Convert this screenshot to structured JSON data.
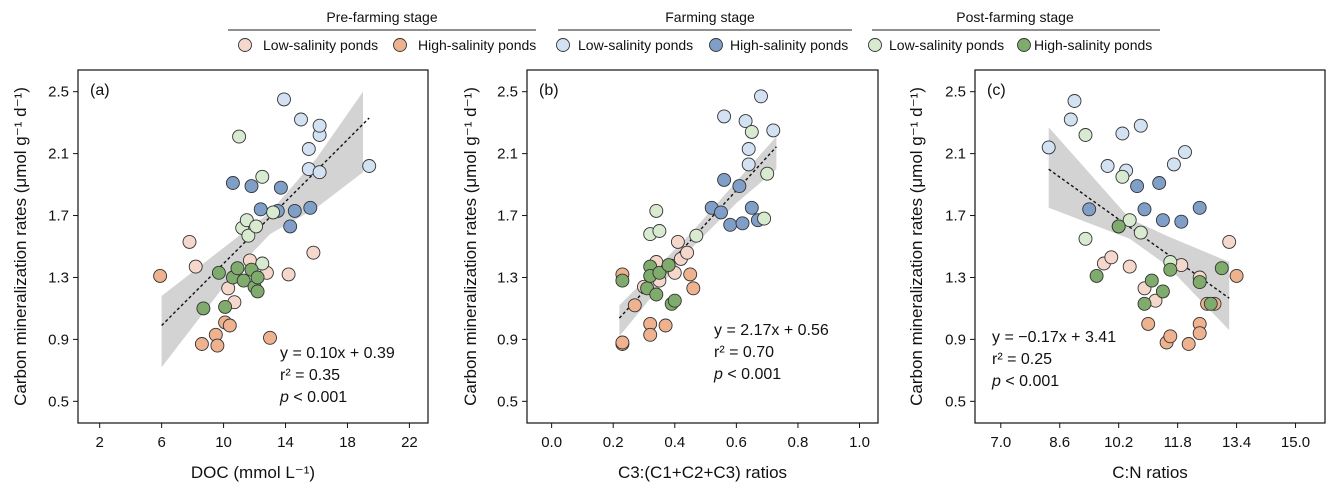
{
  "figure": {
    "ylabel": "Carbon mineralization rates (μmol g⁻¹ d⁻¹)",
    "stages": [
      {
        "title": "Pre-farming stage",
        "legend": [
          {
            "label": "Low-salinity ponds",
            "color": "#f6d7cc"
          },
          {
            "label": "High-salinity ponds",
            "color": "#eeb28e"
          }
        ]
      },
      {
        "title": "Farming stage",
        "legend": [
          {
            "label": "Low-salinity ponds",
            "color": "#d3e2f2"
          },
          {
            "label": "High-salinity ponds",
            "color": "#7f9fc9"
          }
        ]
      },
      {
        "title": "Post-farming stage",
        "legend": [
          {
            "label": "Low-salinity ponds",
            "color": "#d8ead0"
          },
          {
            "label": "High-salinity ponds",
            "color": "#7fac6d"
          }
        ]
      }
    ]
  },
  "chart_data": [
    {
      "type": "scatter",
      "panel_label": "(a)",
      "xlabel": "DOC (mmol L⁻¹)",
      "ylabel": "Carbon mineralization rates (μmol g⁻¹ d⁻¹)",
      "xlim": [
        0.6,
        23.2
      ],
      "ylim": [
        0.36,
        2.64
      ],
      "xticks": [
        "2",
        "6",
        "10",
        "14",
        "18",
        "22"
      ],
      "xtick_values": [
        2,
        6,
        10,
        14,
        18,
        22
      ],
      "yticks": [
        "0.5",
        "0.9",
        "1.3",
        "1.7",
        "2.1",
        "2.5"
      ],
      "ytick_values": [
        0.5,
        0.9,
        1.3,
        1.7,
        2.1,
        2.5
      ],
      "equation": {
        "slope": 0.1,
        "intercept": 0.39,
        "x_range": [
          6,
          19.4
        ]
      },
      "ci_band": [
        [
          6.0,
          0.72,
          1.18
        ],
        [
          11.0,
          1.37,
          1.57
        ],
        [
          13.0,
          1.58,
          1.72
        ],
        [
          16.0,
          1.75,
          2.07
        ],
        [
          19.0,
          1.98,
          2.5
        ]
      ],
      "annotation": {
        "eq": "y  = 0.10x + 0.39",
        "r2": "r² = 0.35",
        "p_prefix": "p",
        "p_suffix": " < 0.001"
      },
      "grid": false,
      "series": [
        {
          "name": "Pre-farming stage · Low-salinity ponds",
          "color": "#f6d7cc",
          "points": [
            [
              7.8,
              1.53
            ],
            [
              8.2,
              1.37
            ],
            [
              10.3,
              1.23
            ],
            [
              10.7,
              1.14
            ],
            [
              11.7,
              1.41
            ],
            [
              12.8,
              1.33
            ],
            [
              14.2,
              1.32
            ],
            [
              15.8,
              1.46
            ]
          ]
        },
        {
          "name": "Pre-farming stage · High-salinity ponds",
          "color": "#eeb28e",
          "points": [
            [
              5.9,
              1.31
            ],
            [
              8.6,
              0.87
            ],
            [
              9.5,
              0.93
            ],
            [
              9.6,
              0.86
            ],
            [
              10.1,
              1.01
            ],
            [
              10.4,
              0.99
            ],
            [
              13.0,
              0.91
            ]
          ]
        },
        {
          "name": "Farming stage · Low-salinity ponds",
          "color": "#d3e2f2",
          "points": [
            [
              13.9,
              2.45
            ],
            [
              15.0,
              2.32
            ],
            [
              15.5,
              2.13
            ],
            [
              15.5,
              2.0
            ],
            [
              16.2,
              2.22
            ],
            [
              16.2,
              2.28
            ],
            [
              16.2,
              1.98
            ],
            [
              19.4,
              2.02
            ]
          ]
        },
        {
          "name": "Farming stage · High-salinity ponds",
          "color": "#7f9fc9",
          "points": [
            [
              10.6,
              1.91
            ],
            [
              11.8,
              1.89
            ],
            [
              12.4,
              1.74
            ],
            [
              13.5,
              1.73
            ],
            [
              13.7,
              1.88
            ],
            [
              14.3,
              1.63
            ],
            [
              14.6,
              1.73
            ],
            [
              15.6,
              1.75
            ]
          ]
        },
        {
          "name": "Post-farming stage · Low-salinity ponds",
          "color": "#d8ead0",
          "points": [
            [
              11.0,
              2.21
            ],
            [
              11.2,
              1.62
            ],
            [
              11.5,
              1.67
            ],
            [
              11.6,
              1.57
            ],
            [
              12.1,
              1.63
            ],
            [
              12.5,
              1.95
            ],
            [
              12.5,
              1.39
            ],
            [
              13.2,
              1.72
            ]
          ]
        },
        {
          "name": "Post-farming stage · High-salinity ponds",
          "color": "#7fac6d",
          "points": [
            [
              8.7,
              1.1
            ],
            [
              9.7,
              1.33
            ],
            [
              10.1,
              1.11
            ],
            [
              10.6,
              1.3
            ],
            [
              10.9,
              1.36
            ],
            [
              11.3,
              1.28
            ],
            [
              11.8,
              1.35
            ],
            [
              12.0,
              1.24
            ],
            [
              12.2,
              1.3
            ],
            [
              12.2,
              1.21
            ]
          ]
        }
      ]
    },
    {
      "type": "scatter",
      "panel_label": "(b)",
      "xlabel": "C3:(C1+C2+C3) ratios",
      "ylabel": "Carbon mineralization rates (μmol g⁻¹ d⁻¹)",
      "xlim": [
        -0.08,
        1.06
      ],
      "ylim": [
        0.36,
        2.64
      ],
      "xticks": [
        "0.0",
        "0.2",
        "0.4",
        "0.6",
        "0.8",
        "1.0"
      ],
      "xtick_values": [
        0.0,
        0.2,
        0.4,
        0.6,
        0.8,
        1.0
      ],
      "yticks": [
        "0.5",
        "0.9",
        "1.3",
        "1.7",
        "2.1",
        "2.5"
      ],
      "ytick_values": [
        0.5,
        0.9,
        1.3,
        1.7,
        2.1,
        2.5
      ],
      "equation": {
        "slope": 2.17,
        "intercept": 0.56,
        "x_range": [
          0.22,
          0.73
        ]
      },
      "ci_band": [
        [
          0.22,
          0.92,
          1.12
        ],
        [
          0.45,
          1.48,
          1.58
        ],
        [
          0.6,
          1.78,
          1.92
        ],
        [
          0.73,
          2.0,
          2.21
        ]
      ],
      "annotation": {
        "eq": "y  = 2.17x + 0.56",
        "r2": "r² = 0.70",
        "p_prefix": "p",
        "p_suffix": " < 0.001"
      },
      "grid": false,
      "series": [
        {
          "name": "Pre-farming stage · Low-salinity ponds",
          "color": "#f6d7cc",
          "points": [
            [
              0.3,
              1.24
            ],
            [
              0.34,
              1.4
            ],
            [
              0.35,
              1.28
            ],
            [
              0.38,
              1.37
            ],
            [
              0.4,
              1.33
            ],
            [
              0.41,
              1.53
            ],
            [
              0.42,
              1.42
            ],
            [
              0.44,
              1.46
            ]
          ]
        },
        {
          "name": "Pre-farming stage · High-salinity ponds",
          "color": "#eeb28e",
          "points": [
            [
              0.23,
              0.87
            ],
            [
              0.23,
              0.88
            ],
            [
              0.23,
              1.32
            ],
            [
              0.27,
              1.12
            ],
            [
              0.32,
              1.0
            ],
            [
              0.32,
              0.93
            ],
            [
              0.37,
              0.99
            ],
            [
              0.45,
              1.32
            ],
            [
              0.46,
              1.23
            ]
          ]
        },
        {
          "name": "Farming stage · Low-salinity ponds",
          "color": "#d3e2f2",
          "points": [
            [
              0.56,
              2.34
            ],
            [
              0.63,
              2.31
            ],
            [
              0.64,
              2.13
            ],
            [
              0.64,
              2.03
            ],
            [
              0.68,
              2.47
            ],
            [
              0.72,
              2.25
            ]
          ]
        },
        {
          "name": "Farming stage · High-salinity ponds",
          "color": "#7f9fc9",
          "points": [
            [
              0.52,
              1.75
            ],
            [
              0.55,
              1.72
            ],
            [
              0.56,
              1.93
            ],
            [
              0.58,
              1.64
            ],
            [
              0.61,
              1.89
            ],
            [
              0.62,
              1.65
            ],
            [
              0.65,
              1.75
            ],
            [
              0.67,
              1.67
            ]
          ]
        },
        {
          "name": "Post-farming stage · Low-salinity ponds",
          "color": "#d8ead0",
          "points": [
            [
              0.32,
              1.58
            ],
            [
              0.34,
              1.73
            ],
            [
              0.35,
              1.6
            ],
            [
              0.47,
              1.57
            ],
            [
              0.65,
              2.24
            ],
            [
              0.69,
              1.68
            ],
            [
              0.7,
              1.97
            ]
          ]
        },
        {
          "name": "Post-farming stage · High-salinity ponds",
          "color": "#7fac6d",
          "points": [
            [
              0.23,
              1.28
            ],
            [
              0.31,
              1.23
            ],
            [
              0.32,
              1.37
            ],
            [
              0.32,
              1.31
            ],
            [
              0.34,
              1.19
            ],
            [
              0.35,
              1.33
            ],
            [
              0.38,
              1.38
            ],
            [
              0.39,
              1.13
            ],
            [
              0.4,
              1.15
            ]
          ]
        }
      ]
    },
    {
      "type": "scatter",
      "panel_label": "(c)",
      "xlabel": "C:N ratios",
      "ylabel": "Carbon mineralization rates (μmol g⁻¹ d⁻¹)",
      "xlim": [
        6.3,
        15.8
      ],
      "ylim": [
        0.36,
        2.64
      ],
      "xticks": [
        "7.0",
        "8.6",
        "10.2",
        "11.8",
        "13.4",
        "15.0"
      ],
      "xtick_values": [
        7.0,
        8.6,
        10.2,
        11.8,
        13.4,
        15.0
      ],
      "yticks": [
        "0.5",
        "0.9",
        "1.3",
        "1.7",
        "2.1",
        "2.5"
      ],
      "ytick_values": [
        0.5,
        0.9,
        1.3,
        1.7,
        2.1,
        2.5
      ],
      "equation": {
        "slope": -0.17,
        "intercept": 3.41,
        "x_range": [
          8.3,
          13.2
        ]
      },
      "ci_band": [
        [
          8.3,
          1.75,
          2.27
        ],
        [
          10.5,
          1.55,
          1.68
        ],
        [
          11.5,
          1.38,
          1.57
        ],
        [
          13.2,
          0.96,
          1.4
        ]
      ],
      "annotation": {
        "eq": "y  = −0.17x + 3.41",
        "r2": "r² = 0.25",
        "p_prefix": "p",
        "p_suffix": " < 0.001"
      },
      "grid": false,
      "series": [
        {
          "name": "Pre-farming stage · Low-salinity ponds",
          "color": "#f6d7cc",
          "points": [
            [
              9.8,
              1.39
            ],
            [
              10.0,
              1.43
            ],
            [
              10.5,
              1.37
            ],
            [
              10.9,
              1.23
            ],
            [
              11.2,
              1.15
            ],
            [
              11.9,
              1.38
            ],
            [
              12.4,
              1.3
            ],
            [
              13.2,
              1.53
            ]
          ]
        },
        {
          "name": "Pre-farming stage · High-salinity ponds",
          "color": "#eeb28e",
          "points": [
            [
              11.0,
              1.0
            ],
            [
              11.5,
              0.88
            ],
            [
              11.6,
              0.92
            ],
            [
              12.1,
              0.87
            ],
            [
              12.4,
              1.0
            ],
            [
              12.4,
              0.94
            ],
            [
              12.6,
              1.13
            ],
            [
              12.8,
              1.13
            ],
            [
              13.4,
              1.31
            ]
          ]
        },
        {
          "name": "Farming stage · Low-salinity ponds",
          "color": "#d3e2f2",
          "points": [
            [
              8.3,
              2.14
            ],
            [
              8.9,
              2.32
            ],
            [
              9.0,
              2.44
            ],
            [
              9.9,
              2.02
            ],
            [
              10.3,
              2.23
            ],
            [
              10.4,
              1.99
            ],
            [
              10.8,
              2.28
            ],
            [
              11.7,
              2.03
            ],
            [
              12.0,
              2.11
            ]
          ]
        },
        {
          "name": "Farming stage · High-salinity ponds",
          "color": "#7f9fc9",
          "points": [
            [
              9.4,
              1.74
            ],
            [
              10.7,
              1.89
            ],
            [
              10.9,
              1.74
            ],
            [
              11.3,
              1.91
            ],
            [
              11.4,
              1.67
            ],
            [
              11.9,
              1.66
            ],
            [
              12.4,
              1.75
            ]
          ]
        },
        {
          "name": "Post-farming stage · Low-salinity ponds",
          "color": "#d8ead0",
          "points": [
            [
              9.3,
              2.22
            ],
            [
              9.3,
              1.55
            ],
            [
              10.2,
              1.63
            ],
            [
              10.3,
              1.95
            ],
            [
              10.5,
              1.67
            ],
            [
              10.8,
              1.59
            ],
            [
              11.6,
              1.4
            ]
          ]
        },
        {
          "name": "Post-farming stage · High-salinity ponds",
          "color": "#7fac6d",
          "points": [
            [
              9.6,
              1.31
            ],
            [
              10.2,
              1.63
            ],
            [
              10.9,
              1.13
            ],
            [
              11.1,
              1.28
            ],
            [
              11.4,
              1.21
            ],
            [
              11.6,
              1.35
            ],
            [
              12.4,
              1.27
            ],
            [
              12.7,
              1.13
            ],
            [
              13.0,
              1.36
            ]
          ]
        }
      ]
    }
  ]
}
